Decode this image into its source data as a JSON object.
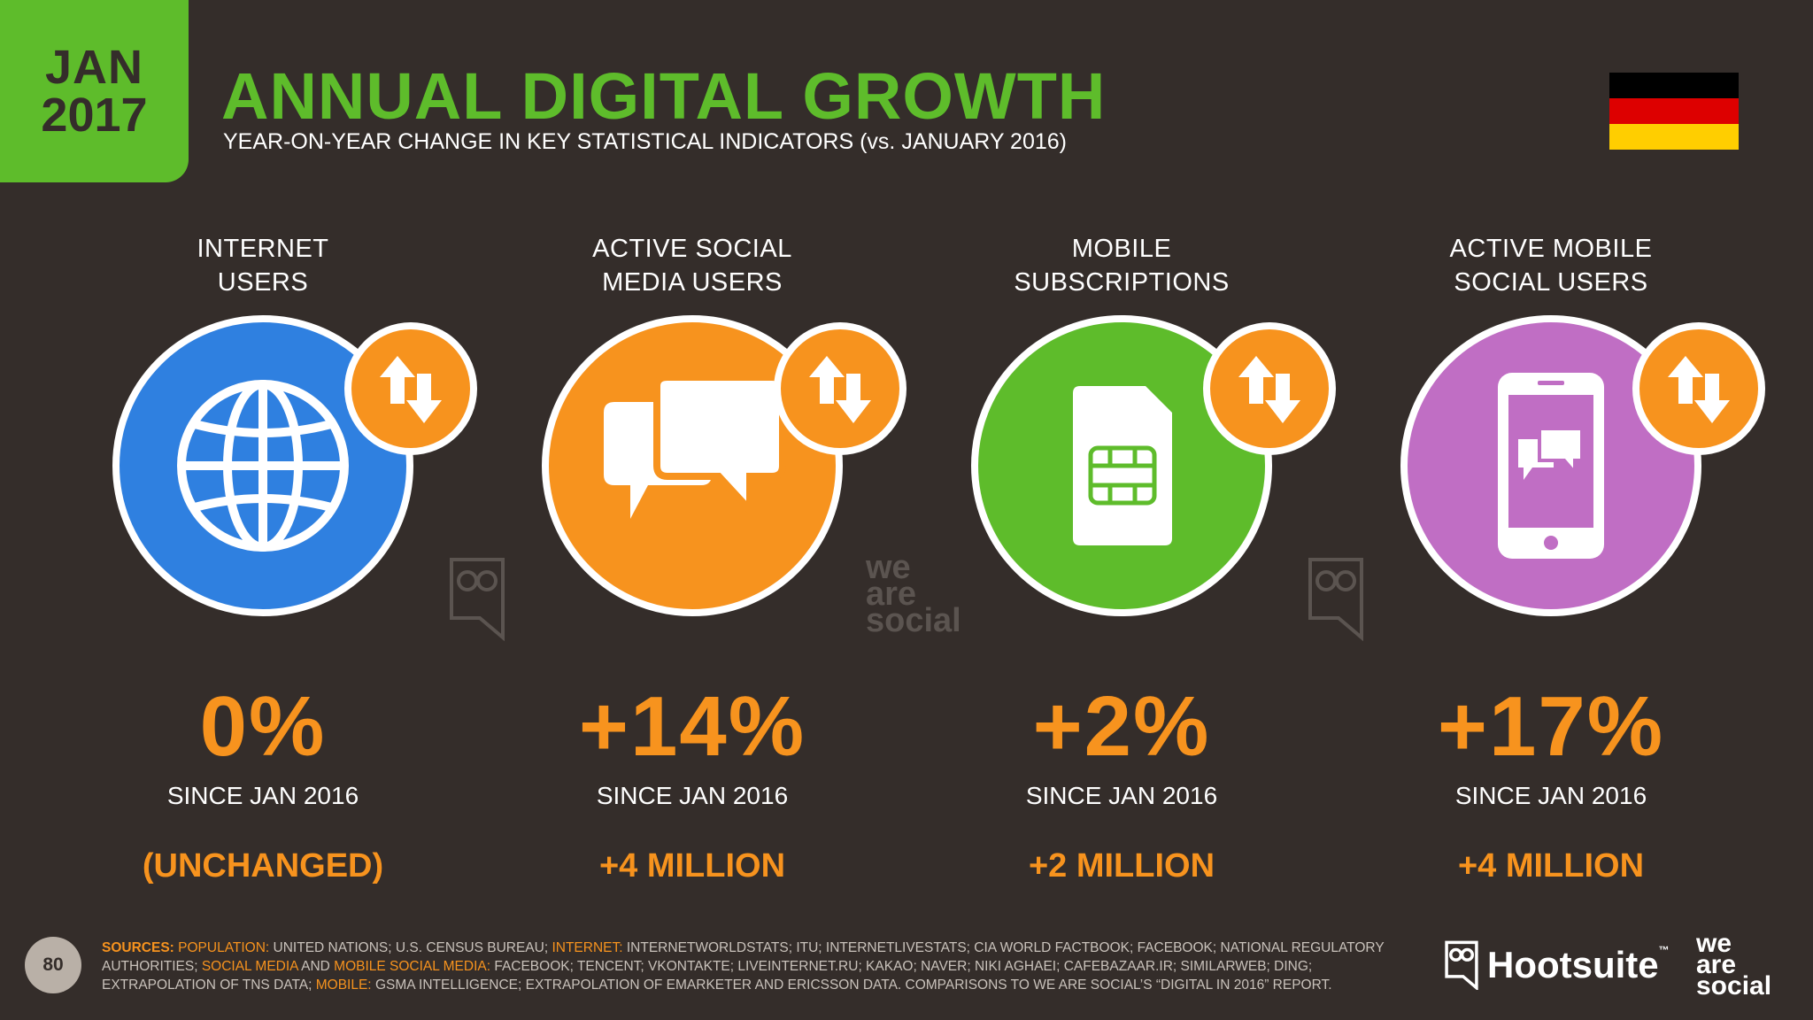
{
  "header": {
    "month": "JAN",
    "year": "2017",
    "title": "ANNUAL DIGITAL GROWTH",
    "subtitle": "YEAR-ON-YEAR CHANGE IN KEY STATISTICAL INDICATORS (vs. JANUARY 2016)"
  },
  "flag": {
    "colors": [
      "#000000",
      "#dd0000",
      "#ffce00"
    ]
  },
  "colors": {
    "background": "#342d2a",
    "green": "#5ebc2b",
    "orange": "#f7931e",
    "blue": "#2f80e0",
    "purple": "#c06ec4"
  },
  "stats": [
    {
      "label_line1": "INTERNET",
      "label_line2": "USERS",
      "icon": "globe-icon",
      "value": "0%",
      "since": "SINCE JAN 2016",
      "change": "(UNCHANGED)"
    },
    {
      "label_line1": "ACTIVE SOCIAL",
      "label_line2": "MEDIA USERS",
      "icon": "chat-bubbles-icon",
      "value": "+14%",
      "since": "SINCE JAN 2016",
      "change": "+4 MILLION"
    },
    {
      "label_line1": "MOBILE",
      "label_line2": "SUBSCRIPTIONS",
      "icon": "sim-card-icon",
      "value": "+2%",
      "since": "SINCE JAN 2016",
      "change": "+2 MILLION"
    },
    {
      "label_line1": "ACTIVE MOBILE",
      "label_line2": "SOCIAL USERS",
      "icon": "phone-chat-icon",
      "value": "+17%",
      "since": "SINCE JAN 2016",
      "change": "+4 MILLION"
    }
  ],
  "watermark": {
    "line1": "we",
    "line2": "are",
    "line3": "social"
  },
  "footer": {
    "page_number": "80",
    "sources_label": "SOURCES:",
    "pop_label": "POPULATION:",
    "pop_text": "UNITED NATIONS; U.S. CENSUS BUREAU;",
    "internet_label": "INTERNET:",
    "internet_text": "INTERNETWORLDSTATS; ITU; INTERNETLIVESTATS; CIA WORLD FACTBOOK; FACEBOOK; NATIONAL REGULATORY AUTHORITIES;",
    "social_label": "SOCIAL MEDIA",
    "and_text": "AND",
    "mobile_social_label": "MOBILE SOCIAL MEDIA:",
    "social_text": "FACEBOOK; TENCENT; VKONTAKTE; LIVEINTERNET.RU; KAKAO; NAVER; NIKI AGHAEI; CAFEBAZAAR.IR; SIMILARWEB; DING; EXTRAPOLATION OF TNS DATA;",
    "mobile_label": "MOBILE:",
    "mobile_text": "GSMA INTELLIGENCE; EXTRAPOLATION OF EMARKETER AND ERICSSON DATA. COMPARISONS TO WE ARE SOCIAL’S “DIGITAL IN 2016” REPORT.",
    "hootsuite": "Hootsuite",
    "tm": "™",
    "was_line1": "we",
    "was_line2": "are",
    "was_line3": "social"
  }
}
